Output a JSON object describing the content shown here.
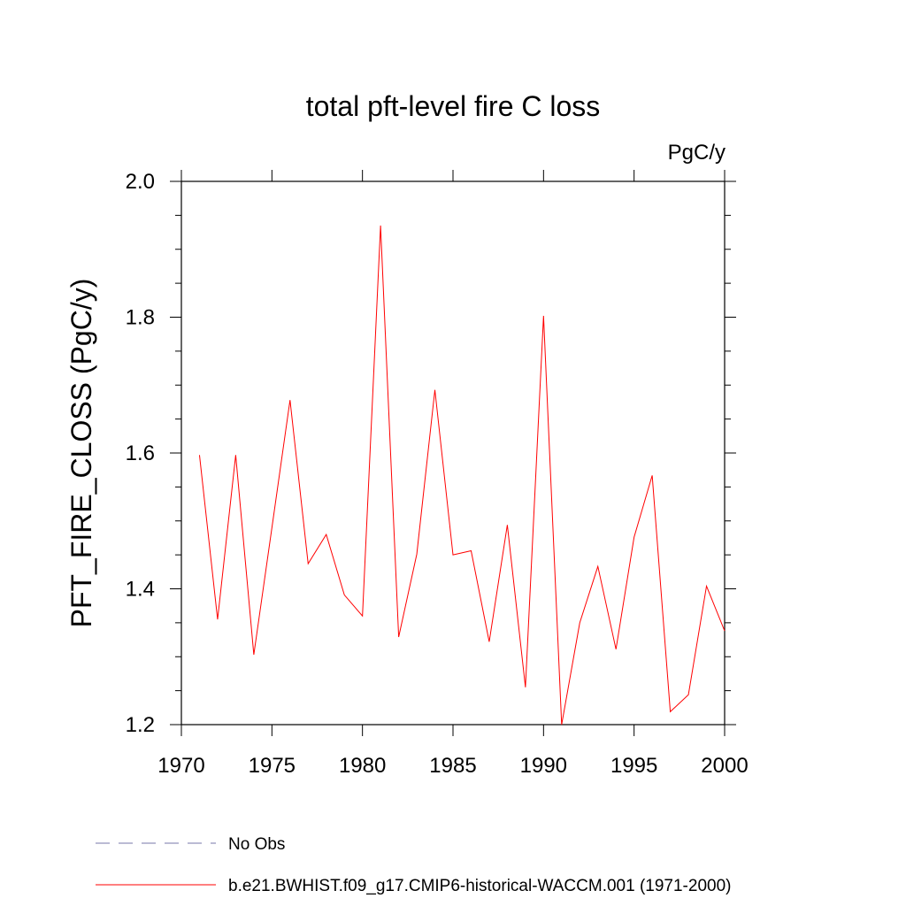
{
  "chart_data": {
    "type": "line",
    "title": "total pft-level fire C loss",
    "units": "PgC/y",
    "xlabel": "",
    "ylabel": "PFT_FIRE_CLOSS  (PgC/y)",
    "xlim": [
      1970,
      2000
    ],
    "ylim": [
      1.2,
      2.0
    ],
    "x_ticks": [
      1970,
      1975,
      1980,
      1985,
      1990,
      1995,
      2000
    ],
    "x_tick_labels": [
      "1970",
      "1975",
      "1980",
      "1985",
      "1990",
      "1995",
      "2000"
    ],
    "y_ticks": [
      1.2,
      1.4,
      1.6,
      1.8,
      2.0
    ],
    "y_tick_labels": [
      "1.2",
      "1.4",
      "1.6",
      "1.8",
      "2.0"
    ],
    "grid": false,
    "legend_position": "bottom",
    "series": [
      {
        "name": "b.e21.BWHIST.f09_g17.CMIP6-historical-WACCM.001 (1971-2000)",
        "color": "#ff0000",
        "style": "solid",
        "x": [
          1971,
          1972,
          1973,
          1974,
          1975,
          1976,
          1977,
          1978,
          1979,
          1980,
          1981,
          1982,
          1983,
          1984,
          1985,
          1986,
          1987,
          1988,
          1989,
          1990,
          1991,
          1992,
          1993,
          1994,
          1995,
          1996,
          1997,
          1998,
          1999,
          2000
        ],
        "values": [
          1.597,
          1.355,
          1.597,
          1.303,
          1.49,
          1.678,
          1.437,
          1.48,
          1.391,
          1.36,
          1.935,
          1.329,
          1.451,
          1.693,
          1.45,
          1.456,
          1.322,
          1.494,
          1.255,
          1.802,
          1.2,
          1.35,
          1.433,
          1.311,
          1.476,
          1.567,
          1.219,
          1.244,
          1.404,
          1.338
        ]
      }
    ],
    "legend": [
      {
        "label": "No Obs",
        "color": "#7777aa",
        "style": "dashed"
      },
      {
        "label": "b.e21.BWHIST.f09_g17.CMIP6-historical-WACCM.001 (1971-2000)",
        "color": "#ff0000",
        "style": "solid"
      }
    ]
  }
}
